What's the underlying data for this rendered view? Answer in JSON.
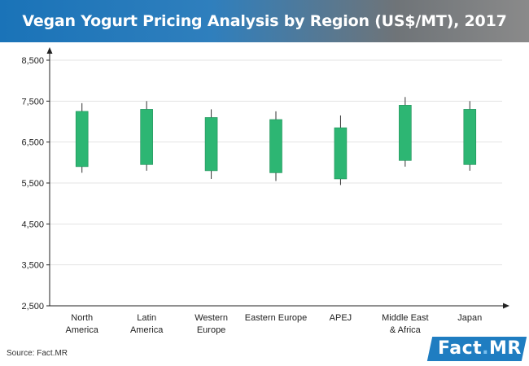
{
  "header": {
    "title": "Vegan Yogurt Pricing Analysis by Region (US$/MT), 2017"
  },
  "footer": {
    "source": "Source: Fact.MR"
  },
  "brand": {
    "name": "Fact",
    "dot": ".",
    "suffix": "MR",
    "color": "#1f7dc1"
  },
  "colors": {
    "candle": "#2db673",
    "wick": "#333333",
    "grid": "#e3e3e3",
    "axis": "#222222"
  },
  "chart_data": {
    "type": "candlestick",
    "title": "Vegan Yogurt Pricing Analysis by Region (US$/MT), 2017",
    "xlabel": "",
    "ylabel": "US$/MT",
    "ylim": [
      2500,
      8500
    ],
    "yticks": [
      2500,
      3500,
      4500,
      5500,
      6500,
      7500,
      8500
    ],
    "ytick_labels": [
      "2,500",
      "3,500",
      "4,500",
      "5,500",
      "6,500",
      "7,500",
      "8,500"
    ],
    "grid": true,
    "categories": [
      [
        "North",
        "America"
      ],
      [
        "Latin",
        "America"
      ],
      [
        "Western",
        "Europe"
      ],
      [
        "Eastern Europe"
      ],
      [
        "APEJ"
      ],
      [
        "Middle East",
        "& Africa"
      ],
      [
        "Japan"
      ]
    ],
    "series": [
      {
        "region": "North America",
        "low": 5750,
        "box_low": 5900,
        "box_high": 7250,
        "high": 7450
      },
      {
        "region": "Latin America",
        "low": 5800,
        "box_low": 5950,
        "box_high": 7300,
        "high": 7500
      },
      {
        "region": "Western Europe",
        "low": 5600,
        "box_low": 5800,
        "box_high": 7100,
        "high": 7300
      },
      {
        "region": "Eastern Europe",
        "low": 5550,
        "box_low": 5750,
        "box_high": 7050,
        "high": 7250
      },
      {
        "region": "APEJ",
        "low": 5450,
        "box_low": 5600,
        "box_high": 6850,
        "high": 7150
      },
      {
        "region": "Middle East & Africa",
        "low": 5900,
        "box_low": 6050,
        "box_high": 7400,
        "high": 7600
      },
      {
        "region": "Japan",
        "low": 5800,
        "box_low": 5950,
        "box_high": 7300,
        "high": 7500
      }
    ]
  }
}
